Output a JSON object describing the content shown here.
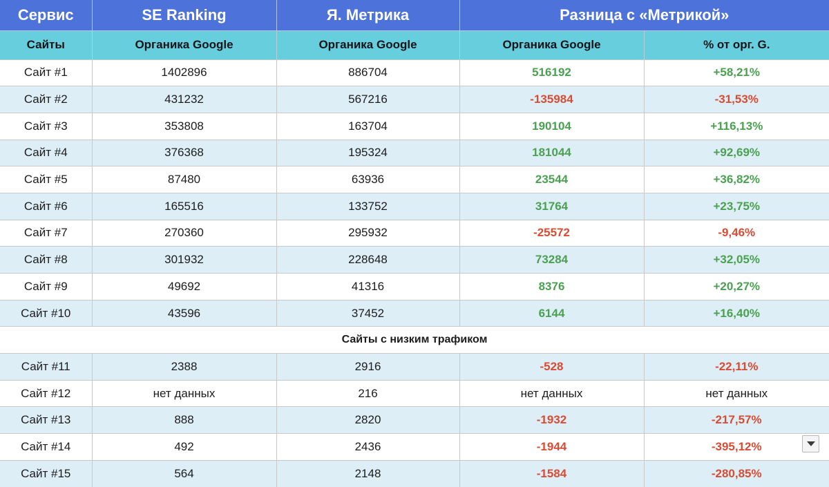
{
  "colors": {
    "header_blue": "#4d72d9",
    "header_teal": "#66cedd",
    "row_alt_blue": "#ddeef6",
    "positive_green": "#4ba051",
    "negative_red": "#d94b33",
    "grid_line": "#c8c8c8"
  },
  "table": {
    "header_row": {
      "service": "Сервис",
      "se_ranking": "SE Ranking",
      "ya_metrika": "Я. Метрика",
      "diff_with_metrika": "Разница с «Метрикой»"
    },
    "sub_header": {
      "sites": "Сайты",
      "se_ranking_metric": "Органика Google",
      "ya_metrika_metric": "Органика Google",
      "diff_metric": "Органика Google",
      "pct_metric": "% от орг. G."
    },
    "rows": [
      {
        "type": "data",
        "site": "Сайт #1",
        "se_ranking": "1402896",
        "ya_metrika": "886704",
        "diff": "516192",
        "pct": "+58,21%",
        "trend": "positive"
      },
      {
        "type": "data",
        "site": "Сайт #2",
        "se_ranking": "431232",
        "ya_metrika": "567216",
        "diff": "-135984",
        "pct": "-31,53%",
        "trend": "negative"
      },
      {
        "type": "data",
        "site": "Сайт #3",
        "se_ranking": "353808",
        "ya_metrika": "163704",
        "diff": "190104",
        "pct": "+116,13%",
        "trend": "positive"
      },
      {
        "type": "data",
        "site": "Сайт #4",
        "se_ranking": "376368",
        "ya_metrika": "195324",
        "diff": "181044",
        "pct": "+92,69%",
        "trend": "positive"
      },
      {
        "type": "data",
        "site": "Сайт #5",
        "se_ranking": "87480",
        "ya_metrika": "63936",
        "diff": "23544",
        "pct": "+36,82%",
        "trend": "positive"
      },
      {
        "type": "data",
        "site": "Сайт #6",
        "se_ranking": "165516",
        "ya_metrika": "133752",
        "diff": "31764",
        "pct": "+23,75%",
        "trend": "positive"
      },
      {
        "type": "data",
        "site": "Сайт #7",
        "se_ranking": "270360",
        "ya_metrika": "295932",
        "diff": "-25572",
        "pct": "-9,46%",
        "trend": "negative"
      },
      {
        "type": "data",
        "site": "Сайт #8",
        "se_ranking": "301932",
        "ya_metrika": "228648",
        "diff": "73284",
        "pct": "+32,05%",
        "trend": "positive"
      },
      {
        "type": "data",
        "site": "Сайт #9",
        "se_ranking": "49692",
        "ya_metrika": "41316",
        "diff": "8376",
        "pct": "+20,27%",
        "trend": "positive"
      },
      {
        "type": "data",
        "site": "Сайт #10",
        "se_ranking": "43596",
        "ya_metrika": "37452",
        "diff": "6144",
        "pct": "+16,40%",
        "trend": "positive"
      },
      {
        "type": "section",
        "label": "Сайты с низким трафиком"
      },
      {
        "type": "data",
        "site": "Сайт #11",
        "se_ranking": "2388",
        "ya_metrika": "2916",
        "diff": "-528",
        "pct": "-22,11%",
        "trend": "negative"
      },
      {
        "type": "data",
        "site": "Сайт #12",
        "se_ranking": "нет данных",
        "ya_metrika": "216",
        "diff": "нет данных",
        "pct": "нет данных",
        "trend": "none"
      },
      {
        "type": "data",
        "site": "Сайт #13",
        "se_ranking": "888",
        "ya_metrika": "2820",
        "diff": "-1932",
        "pct": "-217,57%",
        "trend": "negative"
      },
      {
        "type": "data",
        "site": "Сайт #14",
        "se_ranking": "492",
        "ya_metrika": "2436",
        "diff": "-1944",
        "pct": "-395,12%",
        "trend": "negative"
      },
      {
        "type": "data",
        "site": "Сайт #15",
        "se_ranking": "564",
        "ya_metrika": "2148",
        "diff": "-1584",
        "pct": "-280,85%",
        "trend": "negative"
      }
    ]
  }
}
